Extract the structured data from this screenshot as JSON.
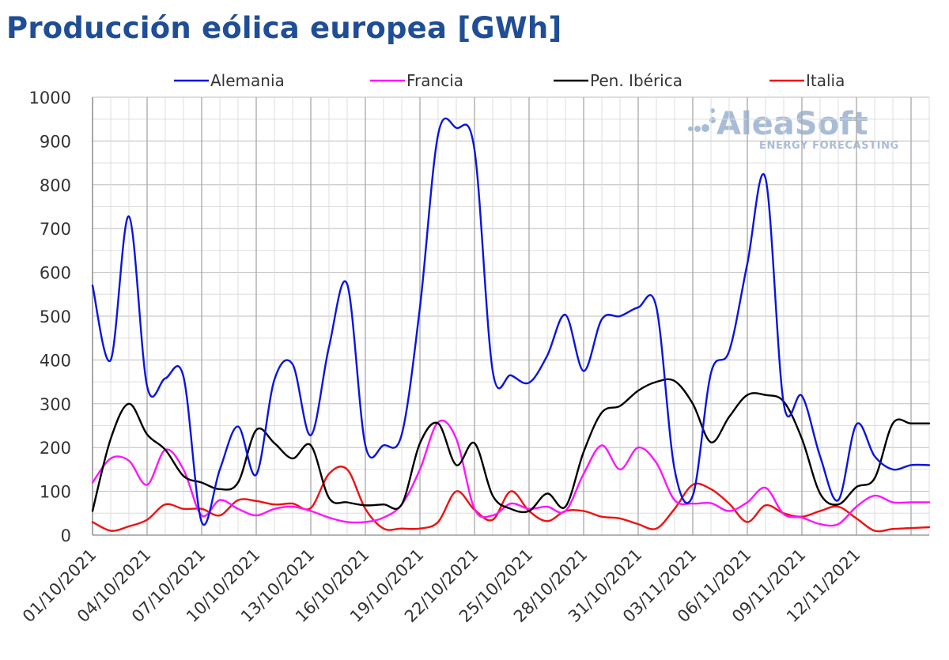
{
  "title": "Producción eólica europea [GWh]",
  "logo": {
    "name": "AleaSoft",
    "tagline": "ENERGY FORECASTING",
    "color": "#a9bcd6"
  },
  "chart_data": {
    "type": "line",
    "title": "Producción eólica europea [GWh]",
    "xlabel": "",
    "ylabel": "",
    "ylim": [
      0,
      1000
    ],
    "yticks": [
      0,
      100,
      200,
      300,
      400,
      500,
      600,
      700,
      800,
      900,
      1000
    ],
    "grid": true,
    "legend_position": "top",
    "x": [
      "01/10/2021",
      "02/10/2021",
      "03/10/2021",
      "04/10/2021",
      "05/10/2021",
      "06/10/2021",
      "07/10/2021",
      "08/10/2021",
      "09/10/2021",
      "10/10/2021",
      "11/10/2021",
      "12/10/2021",
      "13/10/2021",
      "14/10/2021",
      "15/10/2021",
      "16/10/2021",
      "17/10/2021",
      "18/10/2021",
      "19/10/2021",
      "20/10/2021",
      "21/10/2021",
      "22/10/2021",
      "23/10/2021",
      "24/10/2021",
      "25/10/2021",
      "26/10/2021",
      "27/10/2021",
      "28/10/2021",
      "29/10/2021",
      "30/10/2021",
      "31/10/2021",
      "01/11/2021",
      "02/11/2021",
      "03/11/2021",
      "04/11/2021",
      "05/11/2021",
      "06/11/2021",
      "07/11/2021",
      "08/11/2021",
      "09/11/2021",
      "10/11/2021",
      "11/11/2021",
      "12/11/2021",
      "13/11/2021",
      "14/11/2021",
      "15/11/2021",
      "16/11/2021"
    ],
    "xtick_labels": [
      "01/10/2021",
      "04/10/2021",
      "07/10/2021",
      "10/10/2021",
      "13/10/2021",
      "16/10/2021",
      "19/10/2021",
      "22/10/2021",
      "25/10/2021",
      "28/10/2021",
      "31/10/2021",
      "03/11/2021",
      "06/11/2021",
      "09/11/2021",
      "12/11/2021"
    ],
    "series": [
      {
        "name": "Alemania",
        "color": "#0a14e0",
        "values": [
          570,
          400,
          728,
          340,
          358,
          362,
          30,
          150,
          248,
          138,
          355,
          390,
          228,
          430,
          573,
          205,
          205,
          230,
          520,
          915,
          930,
          880,
          375,
          365,
          348,
          410,
          503,
          375,
          493,
          500,
          520,
          520,
          150,
          90,
          370,
          420,
          620,
          815,
          300,
          318,
          180,
          80,
          253,
          180,
          150,
          160,
          160
        ]
      },
      {
        "name": "Francia",
        "color": "#ff14ff",
        "values": [
          120,
          175,
          170,
          115,
          195,
          150,
          45,
          80,
          60,
          45,
          60,
          65,
          55,
          40,
          30,
          30,
          40,
          70,
          150,
          258,
          220,
          60,
          45,
          72,
          60,
          65,
          55,
          140,
          205,
          150,
          200,
          165,
          80,
          72,
          73,
          55,
          75,
          108,
          48,
          40,
          25,
          25,
          65,
          90,
          75,
          75,
          75
        ]
      },
      {
        "name": "Pen. Ibérica",
        "color": "#000000",
        "values": [
          55,
          220,
          300,
          230,
          195,
          135,
          120,
          105,
          120,
          240,
          210,
          175,
          205,
          85,
          75,
          68,
          70,
          70,
          210,
          255,
          160,
          210,
          90,
          60,
          55,
          95,
          65,
          190,
          280,
          295,
          330,
          350,
          352,
          300,
          212,
          270,
          320,
          320,
          305,
          220,
          95,
          70,
          110,
          130,
          255,
          255,
          255
        ]
      },
      {
        "name": "Italia",
        "color": "#ee1111",
        "values": [
          30,
          10,
          20,
          35,
          70,
          60,
          60,
          45,
          80,
          78,
          70,
          72,
          62,
          140,
          150,
          60,
          15,
          15,
          15,
          30,
          100,
          58,
          35,
          100,
          55,
          32,
          55,
          55,
          42,
          38,
          25,
          15,
          60,
          115,
          105,
          72,
          30,
          68,
          50,
          42,
          55,
          65,
          38,
          10,
          14,
          16,
          18
        ]
      }
    ]
  }
}
